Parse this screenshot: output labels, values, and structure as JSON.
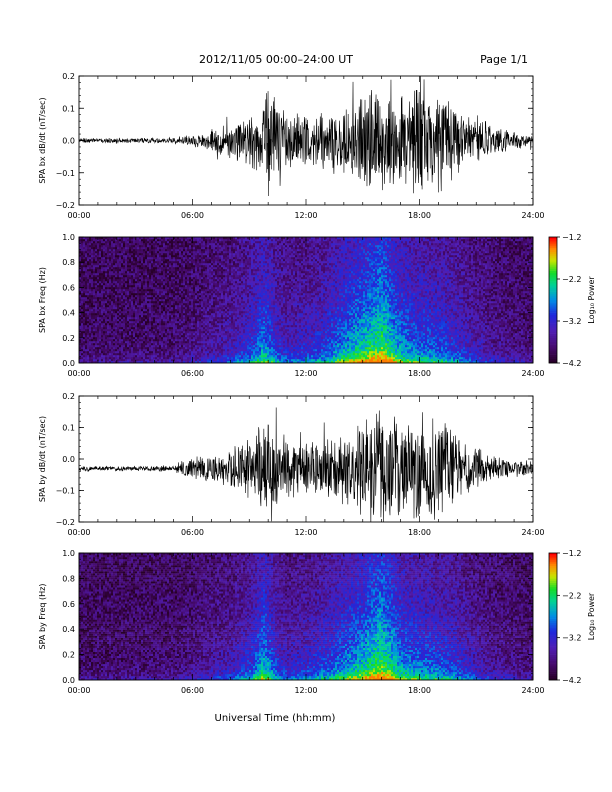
{
  "header": {
    "title": "2012/11/05  00:00–24:00 UT",
    "page": "Page 1/1"
  },
  "footer": {
    "xlabel": "Universal Time (hh:mm)"
  },
  "chart_data": [
    {
      "type": "line",
      "ylabel": "SPA bx dB/dt (nT/sec)",
      "x_ticks": [
        "00:00",
        "06:00",
        "12:00",
        "18:00",
        "24:00"
      ],
      "xlim_hours": [
        0,
        24
      ],
      "ylim": [
        -0.2,
        0.2
      ],
      "y_ticks": [
        "0.2",
        "0.1",
        "0.0",
        "−0.1",
        "−0.2"
      ],
      "y_tick_values": [
        0.2,
        0.1,
        0.0,
        -0.1,
        -0.2
      ],
      "baseline": 0.0,
      "envelope": {
        "hours": [
          0,
          3,
          5,
          6,
          7,
          8,
          9,
          9.5,
          10,
          10.5,
          11,
          12,
          13,
          14,
          15,
          15.5,
          16,
          17,
          18,
          19,
          20,
          21,
          22,
          23,
          24
        ],
        "amplitude": [
          0.008,
          0.008,
          0.01,
          0.02,
          0.04,
          0.06,
          0.08,
          0.12,
          0.2,
          0.15,
          0.1,
          0.1,
          0.09,
          0.13,
          0.18,
          0.2,
          0.16,
          0.15,
          0.2,
          0.18,
          0.12,
          0.08,
          0.05,
          0.03,
          0.02
        ]
      },
      "color": "#000000"
    },
    {
      "type": "heatmap",
      "ylabel": "SPA bx Freq (Hz)",
      "x_ticks": [
        "00:00",
        "06:00",
        "12:00",
        "18:00",
        "24:00"
      ],
      "xlim_hours": [
        0,
        24
      ],
      "ylim": [
        0,
        1.0
      ],
      "y_ticks": [
        "1.0",
        "0.8",
        "0.6",
        "0.4",
        "0.2",
        "0.0"
      ],
      "y_tick_values": [
        1.0,
        0.8,
        0.6,
        0.4,
        0.2,
        0.0
      ],
      "colorbar": {
        "label": "Log₁₀ Power",
        "range": [
          -4.2,
          -1.2
        ],
        "ticks": [
          "−1.2",
          "−2.2",
          "−3.2",
          "−4.2"
        ],
        "tick_values": [
          -1.2,
          -2.2,
          -3.2,
          -4.2
        ]
      },
      "activity": {
        "hours": [
          0,
          5,
          6,
          8,
          9,
          9.8,
          10.5,
          11,
          12,
          13,
          14,
          15,
          16,
          17,
          18,
          19,
          20,
          21,
          22,
          24
        ],
        "level": [
          0.05,
          0.08,
          0.15,
          0.3,
          0.45,
          0.7,
          0.45,
          0.35,
          0.4,
          0.5,
          0.7,
          0.85,
          1.0,
          0.7,
          0.6,
          0.55,
          0.45,
          0.3,
          0.2,
          0.1
        ]
      }
    },
    {
      "type": "line",
      "ylabel": "SPA by dB/dt (nT/sec)",
      "x_ticks": [
        "00:00",
        "06:00",
        "12:00",
        "18:00",
        "24:00"
      ],
      "xlim_hours": [
        0,
        24
      ],
      "ylim": [
        -0.2,
        0.2
      ],
      "y_ticks": [
        "0.2",
        "0.1",
        "0.0",
        "−0.1",
        "−0.2"
      ],
      "y_tick_values": [
        0.2,
        0.1,
        0.0,
        -0.1,
        -0.2
      ],
      "baseline": -0.03,
      "envelope": {
        "hours": [
          0,
          3,
          5,
          5.5,
          6,
          7,
          8,
          9,
          9.5,
          10,
          10.5,
          11,
          12,
          13,
          14,
          15,
          15.5,
          16,
          17,
          18,
          19,
          20,
          21,
          22,
          23,
          24
        ],
        "amplitude": [
          0.008,
          0.008,
          0.012,
          0.03,
          0.04,
          0.05,
          0.07,
          0.1,
          0.14,
          0.2,
          0.14,
          0.1,
          0.1,
          0.1,
          0.12,
          0.17,
          0.2,
          0.18,
          0.15,
          0.2,
          0.17,
          0.12,
          0.07,
          0.04,
          0.03,
          0.025
        ]
      },
      "color": "#000000"
    },
    {
      "type": "heatmap",
      "ylabel": "SPA by Freq (Hz)",
      "x_ticks": [
        "00:00",
        "06:00",
        "12:00",
        "18:00",
        "24:00"
      ],
      "xlim_hours": [
        0,
        24
      ],
      "ylim": [
        0,
        1.0
      ],
      "y_ticks": [
        "1.0",
        "0.8",
        "0.6",
        "0.4",
        "0.2",
        "0.0"
      ],
      "y_tick_values": [
        1.0,
        0.8,
        0.6,
        0.4,
        0.2,
        0.0
      ],
      "colorbar": {
        "label": "Log₁₀ Power",
        "range": [
          -4.2,
          -1.2
        ],
        "ticks": [
          "−1.2",
          "−2.2",
          "−3.2",
          "−4.2"
        ],
        "tick_values": [
          -1.2,
          -2.2,
          -3.2,
          -4.2
        ]
      },
      "activity": {
        "hours": [
          0,
          5,
          6,
          8,
          9,
          9.8,
          10.5,
          11,
          12,
          13,
          14,
          15,
          16,
          17,
          18,
          19,
          20,
          21,
          22,
          24
        ],
        "level": [
          0.05,
          0.08,
          0.15,
          0.3,
          0.45,
          0.75,
          0.45,
          0.35,
          0.4,
          0.5,
          0.65,
          0.8,
          1.0,
          0.7,
          0.6,
          0.55,
          0.45,
          0.3,
          0.2,
          0.1
        ]
      }
    }
  ]
}
